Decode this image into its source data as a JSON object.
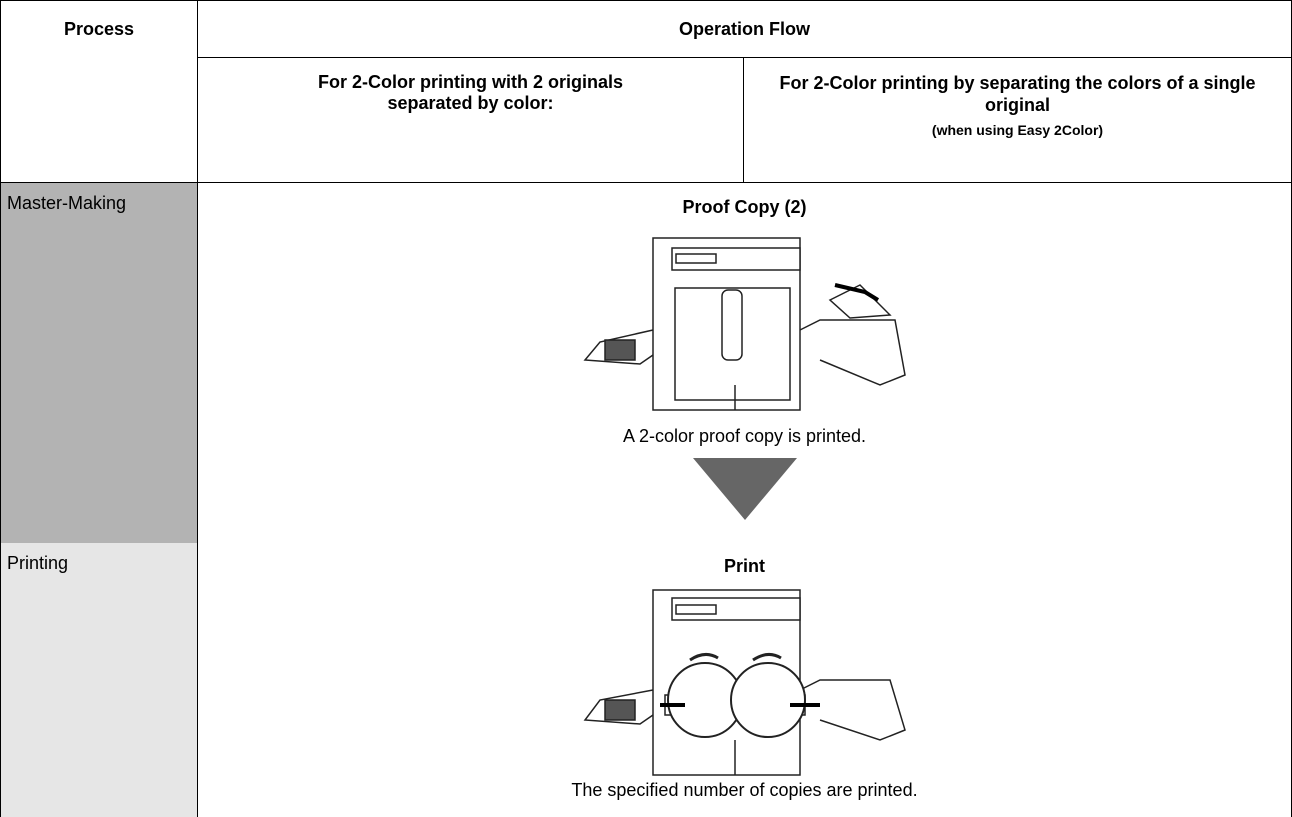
{
  "header": {
    "process": "Process",
    "operation_flow": "Operation Flow",
    "col1": "For 2-Color printing with 2 originals separated by color:",
    "col2": "For 2-Color printing by separating the colors of a single original",
    "col2_note": "(when using Easy 2Color)"
  },
  "rows": [
    {
      "process": "Master-Making"
    },
    {
      "process": "Printing"
    }
  ],
  "flow": [
    {
      "title": "Proof Copy (2)",
      "caption": "A 2-color proof copy is printed."
    },
    {
      "title": "Print",
      "caption": "The specified number of copies are printed."
    }
  ]
}
